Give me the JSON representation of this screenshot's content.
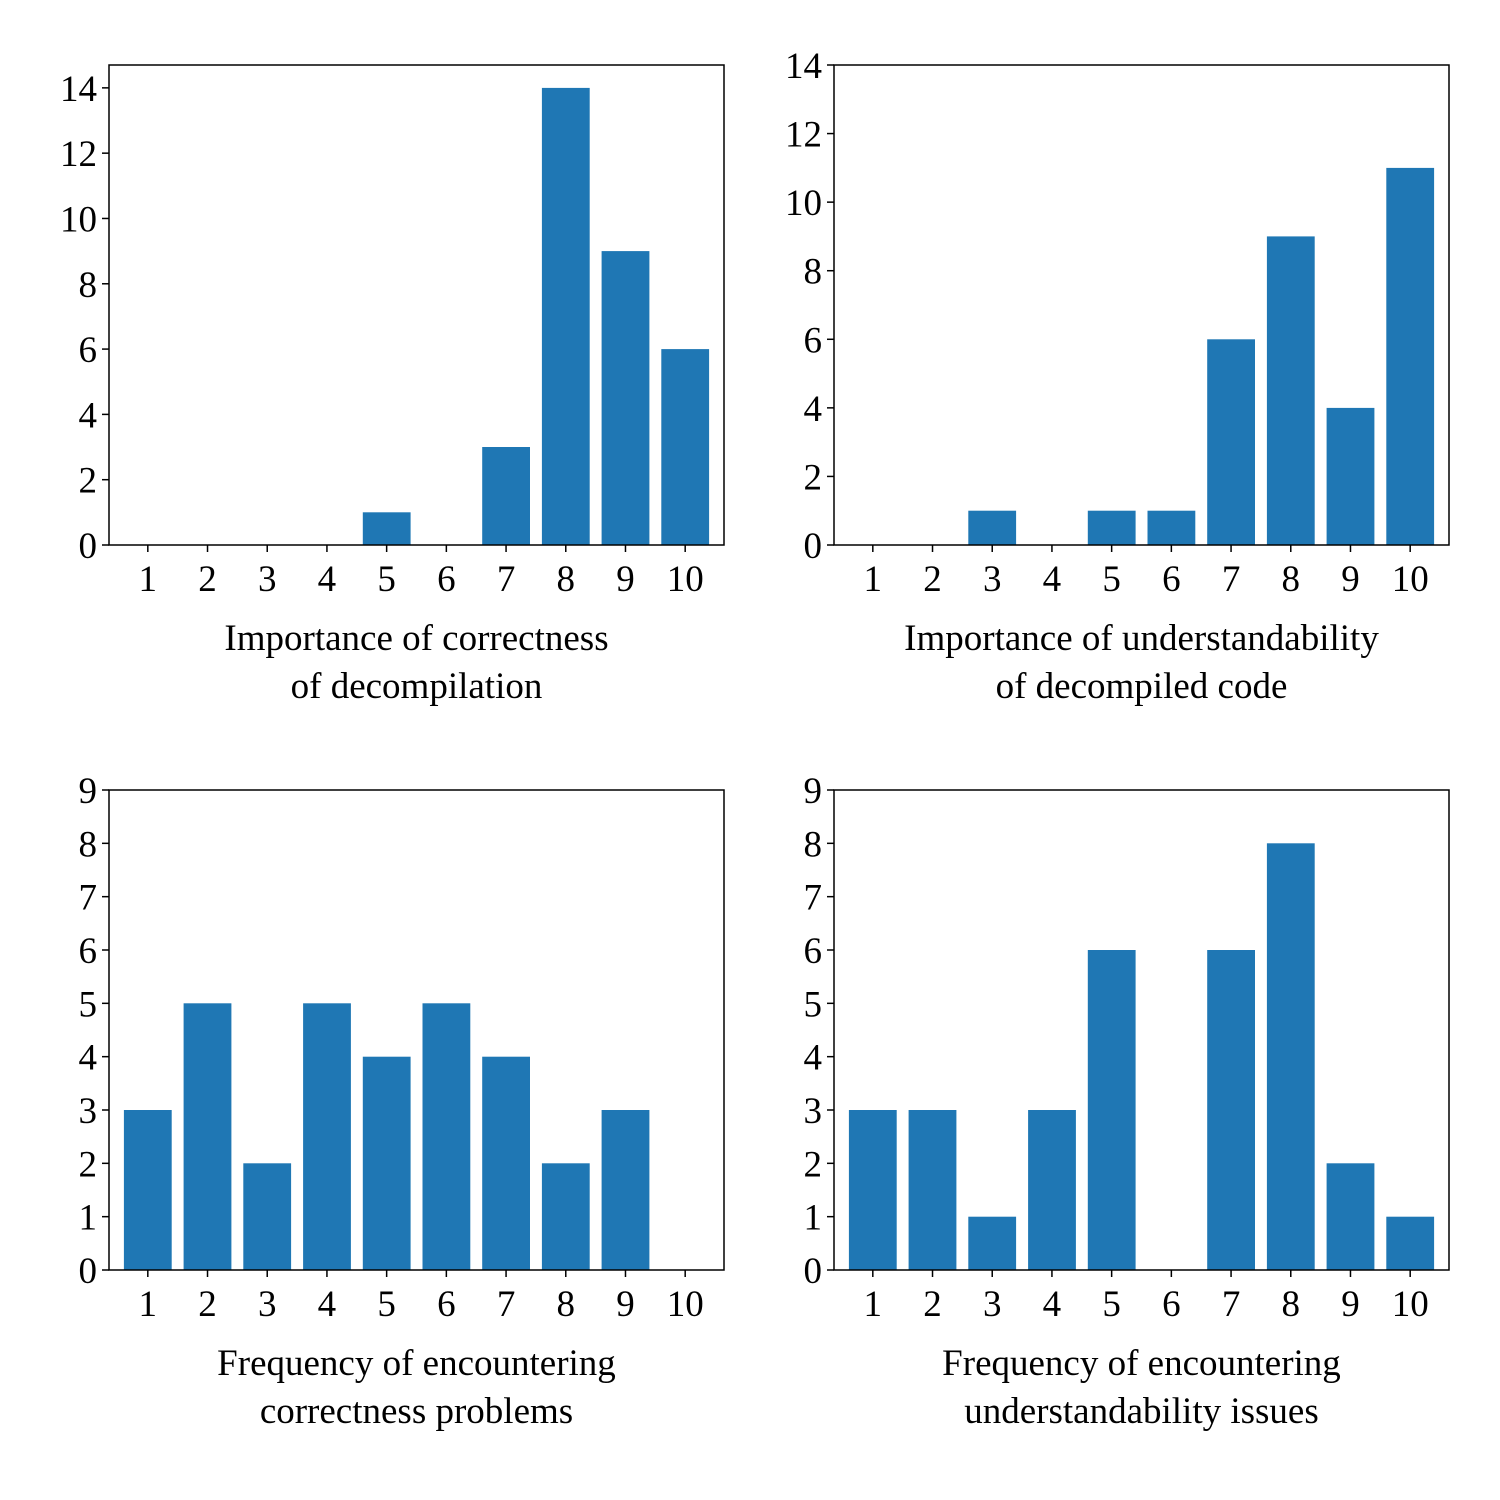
{
  "colors": {
    "bar": "#1f77b4",
    "axis": "#000000",
    "background": "#ffffff"
  },
  "chart_data": [
    {
      "type": "bar",
      "categories": [
        "1",
        "2",
        "3",
        "4",
        "5",
        "6",
        "7",
        "8",
        "9",
        "10"
      ],
      "values": [
        0,
        0,
        0,
        0,
        1,
        0,
        3,
        14,
        9,
        6
      ],
      "xlabel": [
        "Importance of correctness",
        "of decompilation"
      ],
      "ylabel": "",
      "ylim": [
        0,
        14.7
      ],
      "yticks": [
        0,
        2,
        4,
        6,
        8,
        10,
        12,
        14
      ],
      "grid": false
    },
    {
      "type": "bar",
      "categories": [
        "1",
        "2",
        "3",
        "4",
        "5",
        "6",
        "7",
        "8",
        "9",
        "10"
      ],
      "values": [
        0,
        0,
        1,
        0,
        1,
        1,
        6,
        9,
        4,
        11
      ],
      "xlabel": [
        "Importance of understandability",
        "of decompiled code"
      ],
      "ylabel": "",
      "ylim": [
        0,
        14
      ],
      "yticks": [
        0,
        2,
        4,
        6,
        8,
        10,
        12,
        14
      ],
      "grid": false
    },
    {
      "type": "bar",
      "categories": [
        "1",
        "2",
        "3",
        "4",
        "5",
        "6",
        "7",
        "8",
        "9",
        "10"
      ],
      "values": [
        3,
        5,
        2,
        5,
        4,
        5,
        4,
        2,
        3,
        0
      ],
      "xlabel": [
        "Frequency of encountering",
        "correctness problems"
      ],
      "ylabel": "",
      "ylim": [
        0,
        9
      ],
      "yticks": [
        0,
        1,
        2,
        3,
        4,
        5,
        6,
        7,
        8,
        9
      ],
      "grid": false
    },
    {
      "type": "bar",
      "categories": [
        "1",
        "2",
        "3",
        "4",
        "5",
        "6",
        "7",
        "8",
        "9",
        "10"
      ],
      "values": [
        3,
        3,
        1,
        3,
        6,
        0,
        6,
        8,
        2,
        1
      ],
      "xlabel": [
        "Frequency of encountering",
        "understandability issues"
      ],
      "ylabel": "",
      "ylim": [
        0,
        9
      ],
      "yticks": [
        0,
        1,
        2,
        3,
        4,
        5,
        6,
        7,
        8,
        9
      ],
      "grid": false
    }
  ]
}
